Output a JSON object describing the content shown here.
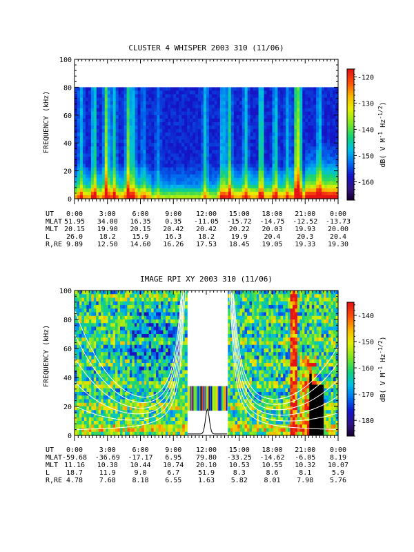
{
  "chart_data": [
    {
      "type": "heatmap",
      "title": "CLUSTER 4 WHISPER 2003 310 (11/06)",
      "ylabel": "FREQUENCY (kHz)",
      "ylim": [
        0,
        100
      ],
      "yticks": [
        "0",
        "20",
        "40",
        "60",
        "80",
        "100"
      ],
      "data_ceiling_khz": 80,
      "xlim_hours": [
        0,
        24
      ],
      "colorbar": {
        "label_parts": [
          "dB( V M",
          "-1",
          " Hz",
          "-1/2",
          ")"
        ],
        "range": [
          -167,
          -117
        ],
        "ticks": [
          "-120",
          "-130",
          "-140",
          "-150",
          "-160"
        ],
        "tick_values": [
          -120,
          -130,
          -140,
          -150,
          -160
        ]
      },
      "ephemeris": {
        "row_labels": [
          "UT",
          "MLAT",
          "MLT",
          "L",
          "R,RE"
        ],
        "UT": [
          "0:00",
          "3:00",
          "6:00",
          "9:00",
          "12:00",
          "15:00",
          "18:00",
          "21:00",
          "0:00"
        ],
        "MLAT": [
          "51.95",
          "34.00",
          "16.35",
          "0.35",
          "-11.05",
          "-15.72",
          "-14.75",
          "-12.52",
          "-13.73"
        ],
        "MLT": [
          "20.15",
          "19.90",
          "20.15",
          "20.42",
          "20.42",
          "20.22",
          "20.03",
          "19.93",
          "20.00"
        ],
        "L": [
          "26.0",
          "18.2",
          "15.9",
          "16.3",
          "18.2",
          "19.9",
          "20.4",
          "20.3",
          "20.4"
        ],
        "RRE": [
          "9.89",
          "12.50",
          "14.60",
          "16.26",
          "17.53",
          "18.45",
          "19.05",
          "19.33",
          "19.30"
        ]
      }
    },
    {
      "type": "heatmap",
      "title": "IMAGE RPI XY 2003 310 (11/06)",
      "ylabel": "FREQUENCY (kHz)",
      "ylim": [
        0,
        100
      ],
      "yticks": [
        "0",
        "20",
        "40",
        "60",
        "80",
        "100"
      ],
      "data_gap_hours": [
        10.3,
        13.9
      ],
      "xlim_hours": [
        0,
        24
      ],
      "colorbar": {
        "label_parts": [
          "dB( V M",
          "-1",
          " Hz",
          "-1/2",
          ")"
        ],
        "range": [
          -186,
          -135
        ],
        "ticks": [
          "-140",
          "-150",
          "-160",
          "-170",
          "-180"
        ],
        "tick_values": [
          -140,
          -150,
          -160,
          -170,
          -180
        ]
      },
      "ephemeris": {
        "row_labels": [
          "UT",
          "MLAT",
          "MLT",
          "L",
          "R,RE"
        ],
        "UT": [
          "0:00",
          "3:00",
          "6:00",
          "9:00",
          "12:00",
          "15:00",
          "18:00",
          "21:00",
          "0:00"
        ],
        "MLAT": [
          "-59.68",
          "-36.69",
          "-17.17",
          "6.95",
          "79.80",
          "-33.25",
          "-14.62",
          "-6.05",
          "8.19"
        ],
        "MLT": [
          "11.16",
          "10.38",
          "10.44",
          "10.74",
          "20.10",
          "10.53",
          "10.55",
          "10.32",
          "10.07"
        ],
        "L": [
          "18.7",
          "11.9",
          "9.0",
          "6.7",
          "51.9",
          "8.3",
          "8.6",
          "8.1",
          "5.9"
        ],
        "RRE": [
          "4.78",
          "7.68",
          "8.18",
          "6.55",
          "1.63",
          "5.82",
          "8.01",
          "7.98",
          "5.76"
        ]
      }
    }
  ]
}
